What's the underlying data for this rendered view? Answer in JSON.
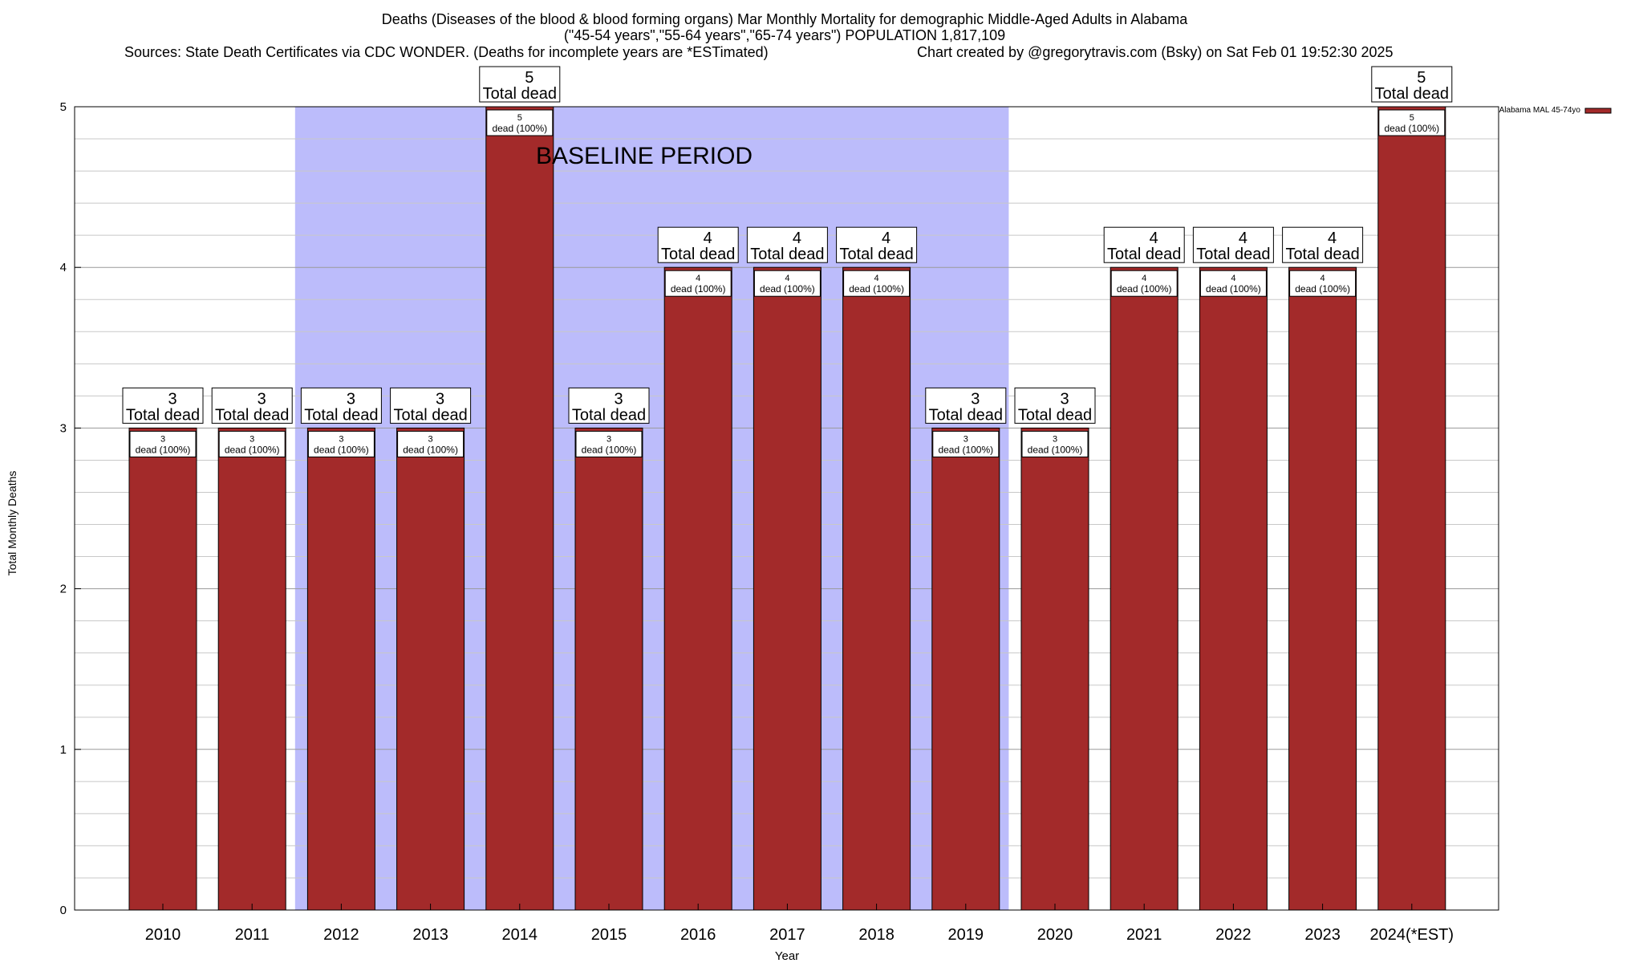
{
  "chart_data": {
    "type": "bar",
    "title_lines": [
      "Deaths (Diseases of the blood & blood forming organs) Mar Monthly Mortality for demographic Middle-Aged Adults in Alabama",
      "(\"45-54 years\",\"55-64 years\",\"65-74 years\") POPULATION 1,817,109"
    ],
    "sources": "Sources: State Death Certificates via CDC WONDER. (Deaths for incomplete years are *ESTimated)",
    "credit": "Chart created by @gregorytravis.com (Bsky) on Sat Feb 01 19:52:30 2025",
    "xlabel": "Year",
    "ylabel": "Total Monthly Deaths",
    "ylim": [
      0,
      5
    ],
    "yticks": [
      "0",
      "1",
      "2",
      "3",
      "4",
      "5"
    ],
    "categories": [
      "2010",
      "2011",
      "2012",
      "2013",
      "2014",
      "2015",
      "2016",
      "2017",
      "2018",
      "2019",
      "2020",
      "2021",
      "2022",
      "2023",
      "2024(*EST)"
    ],
    "series": [
      {
        "name": "Alabama MAL 45-74yo",
        "color": "#a32a2a",
        "values": [
          3,
          3,
          3,
          3,
          5,
          3,
          4,
          4,
          4,
          3,
          3,
          4,
          4,
          4,
          5
        ]
      }
    ],
    "total_label_suffix": "Total dead",
    "inner_label_suffix": "dead (100%)",
    "baseline": {
      "label": "BASELINE PERIOD",
      "from": "2012",
      "to": "2019",
      "color": "#bcbcfb"
    },
    "grid": true,
    "legend_position": "top-right"
  }
}
